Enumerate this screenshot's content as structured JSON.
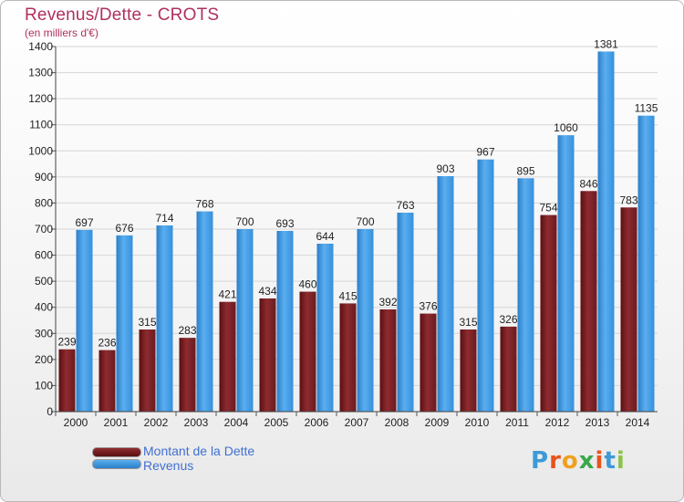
{
  "title": "Revenus/Dette - CROTS",
  "subtitle": "(en milliers d'€)",
  "logo_text": "Proxiti",
  "logo_colors": [
    "#3d9ad6",
    "#e8541e",
    "#f0a020",
    "#3aa84a",
    "#e8541e",
    "#3d9ad6",
    "#8bc34a"
  ],
  "colors": {
    "debt": "#7a1f24",
    "revenue": "#3a93dc",
    "title": "#b03060",
    "legend_text": "#4070d0"
  },
  "chart_data": {
    "type": "bar",
    "title": "Revenus/Dette - CROTS",
    "subtitle": "(en milliers d'€)",
    "categories": [
      "2000",
      "2001",
      "2002",
      "2003",
      "2004",
      "2005",
      "2006",
      "2007",
      "2008",
      "2009",
      "2010",
      "2011",
      "2012",
      "2013",
      "2014"
    ],
    "series": [
      {
        "name": "Montant de la Dette",
        "values": [
          239,
          236,
          315,
          283,
          421,
          434,
          460,
          415,
          392,
          376,
          315,
          326,
          754,
          846,
          783
        ]
      },
      {
        "name": "Revenus",
        "values": [
          697,
          676,
          714,
          768,
          700,
          693,
          644,
          700,
          763,
          903,
          967,
          895,
          1060,
          1381,
          1135
        ]
      }
    ],
    "ylim": [
      0,
      1400
    ],
    "yticks": [
      0,
      100,
      200,
      300,
      400,
      500,
      600,
      700,
      800,
      900,
      1000,
      1100,
      1200,
      1300,
      1400
    ],
    "grid": true,
    "legend_position": "bottom-left"
  }
}
